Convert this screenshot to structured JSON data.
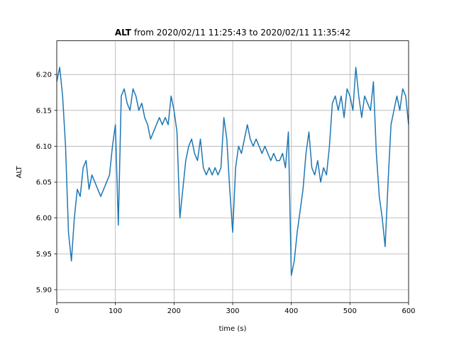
{
  "chart_data": {
    "type": "line",
    "title_variable": "ALT",
    "title": "from 2020/02/11 11:25:43 to 2020/02/11 11:35:42",
    "xlabel": "time (s)",
    "ylabel": "ALT",
    "xlim": [
      0,
      600
    ],
    "xticks": [
      0,
      100,
      200,
      300,
      400,
      500,
      600
    ],
    "ylim": [
      5.882,
      6.247
    ],
    "yticks": [
      {
        "value": 5.9,
        "label": "5.90"
      },
      5.95,
      {
        "value": 6.0,
        "label": "6.00"
      },
      6.05,
      {
        "value": 6.1,
        "label": "6.10"
      },
      6.15,
      {
        "value": 6.2,
        "label": "6.20"
      }
    ],
    "grid": true,
    "series": [
      {
        "name": "ALT",
        "color": "#1f77b4",
        "x": [
          0,
          5,
          10,
          15,
          20,
          25,
          30,
          35,
          40,
          45,
          50,
          55,
          60,
          65,
          70,
          75,
          80,
          85,
          90,
          95,
          100,
          105,
          110,
          115,
          120,
          125,
          130,
          135,
          140,
          145,
          150,
          155,
          160,
          165,
          170,
          175,
          180,
          185,
          190,
          195,
          200,
          205,
          210,
          215,
          220,
          225,
          230,
          235,
          240,
          245,
          250,
          255,
          260,
          265,
          270,
          275,
          280,
          285,
          290,
          295,
          300,
          305,
          310,
          315,
          320,
          325,
          330,
          335,
          340,
          345,
          350,
          355,
          360,
          365,
          370,
          375,
          380,
          385,
          390,
          395,
          400,
          405,
          410,
          415,
          420,
          425,
          430,
          435,
          440,
          445,
          450,
          455,
          460,
          465,
          470,
          475,
          480,
          485,
          490,
          495,
          500,
          505,
          510,
          515,
          520,
          525,
          530,
          535,
          540,
          545,
          550,
          555,
          560,
          565,
          570,
          575,
          580,
          585,
          590,
          595,
          600
        ],
        "values": [
          6.19,
          6.21,
          6.17,
          6.1,
          5.98,
          5.94,
          6.0,
          6.04,
          6.03,
          6.07,
          6.08,
          6.04,
          6.06,
          6.05,
          6.04,
          6.03,
          6.04,
          6.05,
          6.06,
          6.1,
          6.13,
          5.99,
          6.17,
          6.18,
          6.16,
          6.15,
          6.18,
          6.17,
          6.15,
          6.16,
          6.14,
          6.13,
          6.11,
          6.12,
          6.13,
          6.14,
          6.13,
          6.14,
          6.13,
          6.17,
          6.15,
          6.12,
          6.0,
          6.04,
          6.08,
          6.1,
          6.11,
          6.09,
          6.08,
          6.11,
          6.07,
          6.06,
          6.07,
          6.06,
          6.07,
          6.06,
          6.07,
          6.14,
          6.11,
          6.04,
          5.98,
          6.07,
          6.1,
          6.09,
          6.11,
          6.13,
          6.11,
          6.1,
          6.11,
          6.1,
          6.09,
          6.1,
          6.09,
          6.08,
          6.09,
          6.08,
          6.08,
          6.09,
          6.07,
          6.12,
          5.92,
          5.94,
          5.98,
          6.01,
          6.04,
          6.09,
          6.12,
          6.07,
          6.06,
          6.08,
          6.05,
          6.07,
          6.06,
          6.1,
          6.16,
          6.17,
          6.15,
          6.17,
          6.14,
          6.18,
          6.17,
          6.15,
          6.21,
          6.17,
          6.14,
          6.17,
          6.16,
          6.15,
          6.19,
          6.09,
          6.03,
          6.0,
          5.96,
          6.05,
          6.13,
          6.15,
          6.17,
          6.15,
          6.18,
          6.17,
          6.13
        ]
      }
    ]
  }
}
